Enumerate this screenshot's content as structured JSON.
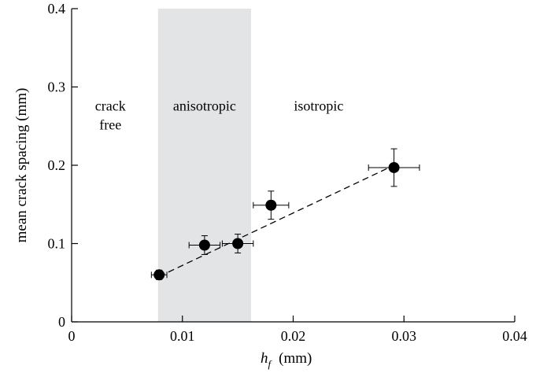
{
  "chart_data": {
    "type": "scatter",
    "xlabel": "h",
    "xlabel_subscript": "f",
    "xlabel_unit": "(mm)",
    "ylabel": "mean crack spacing   (mm)",
    "xlim": [
      0,
      0.04
    ],
    "ylim": [
      0,
      0.4
    ],
    "xticks": [
      "0",
      "0.01",
      "0.02",
      "0.03",
      "0.04"
    ],
    "yticks": [
      "0",
      "0.1",
      "0.2",
      "0.3",
      "0.4"
    ],
    "grid": false,
    "shaded_region": {
      "x": [
        0.0078,
        0.0162
      ],
      "color": "#e3e4e6"
    },
    "region_labels": [
      {
        "lines": [
          "crack",
          "free"
        ],
        "x": 0.0035,
        "y": 0.27
      },
      {
        "lines": [
          "anisotropic"
        ],
        "x": 0.012,
        "y": 0.27
      },
      {
        "lines": [
          "isotropic"
        ],
        "x": 0.0223,
        "y": 0.27
      }
    ],
    "points": [
      {
        "x": 0.0079,
        "y": 0.06,
        "xerr": 0.0007,
        "yerr": 0.006
      },
      {
        "x": 0.012,
        "y": 0.098,
        "xerr": 0.0014,
        "yerr": 0.012
      },
      {
        "x": 0.015,
        "y": 0.1,
        "xerr": 0.0014,
        "yerr": 0.012
      },
      {
        "x": 0.018,
        "y": 0.149,
        "xerr": 0.0016,
        "yerr": 0.018
      },
      {
        "x": 0.0291,
        "y": 0.197,
        "xerr": 0.0023,
        "yerr": 0.024
      }
    ],
    "fit_line": {
      "x": [
        0.0079,
        0.0291
      ],
      "y": [
        0.058,
        0.2
      ]
    }
  }
}
